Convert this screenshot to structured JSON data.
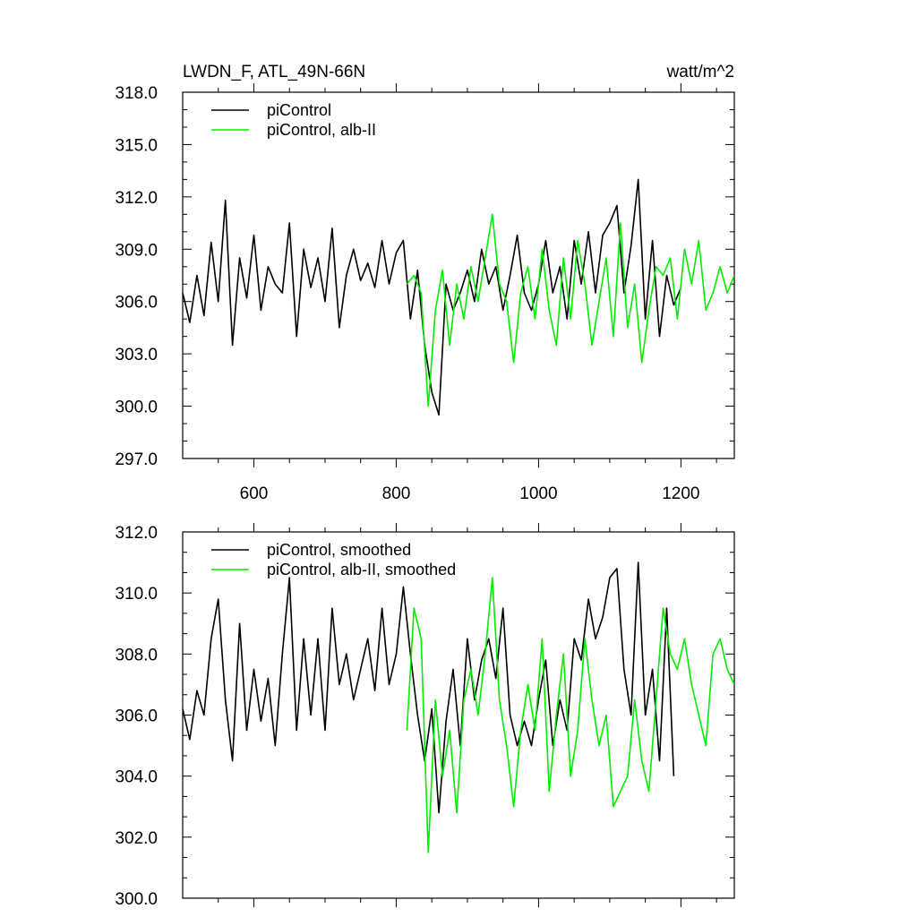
{
  "figure": {
    "title_left": "LWDN_F, ATL_49N-66N",
    "title_right": "watt/m^2"
  },
  "colors": {
    "series_control": "#000000",
    "series_albII": "#00ee00",
    "frame": "#000000",
    "background": "#ffffff"
  },
  "chart_data": [
    {
      "type": "line",
      "title": "LWDN_F, ATL_49N-66N",
      "unit_label": "watt/m^2",
      "xlabel": "",
      "ylabel": "",
      "xlim": [
        500,
        1275
      ],
      "ylim": [
        297.0,
        318.0
      ],
      "xticks": [
        600,
        800,
        1000,
        1200
      ],
      "xtick_labels": [
        "600",
        "800",
        "1000",
        "1200"
      ],
      "yticks": [
        297.0,
        300.0,
        303.0,
        306.0,
        309.0,
        312.0,
        315.0,
        318.0
      ],
      "ytick_labels": [
        "297.0",
        "300.0",
        "303.0",
        "306.0",
        "309.0",
        "312.0",
        "315.0",
        "318.0"
      ],
      "grid": false,
      "legend": "top-left",
      "series": [
        {
          "name": "piControl",
          "color": "#000000",
          "x": [
            500,
            510,
            520,
            530,
            540,
            550,
            560,
            570,
            580,
            590,
            600,
            610,
            620,
            630,
            640,
            650,
            660,
            670,
            680,
            690,
            700,
            710,
            720,
            730,
            740,
            750,
            760,
            770,
            780,
            790,
            800,
            810,
            820,
            830,
            840,
            850,
            860,
            870,
            880,
            890,
            900,
            910,
            920,
            930,
            940,
            950,
            960,
            970,
            980,
            990,
            1000,
            1010,
            1020,
            1030,
            1040,
            1050,
            1060,
            1070,
            1080,
            1090,
            1100,
            1110,
            1120,
            1130,
            1140,
            1150,
            1160,
            1170,
            1180,
            1190,
            1200
          ],
          "y": [
            306.5,
            304.8,
            307.5,
            305.2,
            309.4,
            306.0,
            311.8,
            303.5,
            308.5,
            306.2,
            309.8,
            305.5,
            308.0,
            307.0,
            306.5,
            310.5,
            304.0,
            309.0,
            306.8,
            308.5,
            306.0,
            310.2,
            304.5,
            307.5,
            309.0,
            307.2,
            308.2,
            306.8,
            309.5,
            307.0,
            308.8,
            309.5,
            305.0,
            307.8,
            303.5,
            300.8,
            299.5,
            307.0,
            305.5,
            306.5,
            307.8,
            306.0,
            309.0,
            307.0,
            308.0,
            305.5,
            307.5,
            309.8,
            306.5,
            305.5,
            307.0,
            309.5,
            306.5,
            308.0,
            305.0,
            309.5,
            307.0,
            310.0,
            306.5,
            309.8,
            310.5,
            311.5,
            306.5,
            309.2,
            313.0,
            305.0,
            309.5,
            304.0,
            307.5,
            305.8,
            306.8
          ]
        },
        {
          "name": "piControl, alb-II",
          "color": "#00ee00",
          "x": [
            815,
            825,
            835,
            845,
            855,
            865,
            875,
            885,
            895,
            905,
            915,
            925,
            935,
            945,
            955,
            965,
            975,
            985,
            995,
            1005,
            1015,
            1025,
            1035,
            1045,
            1055,
            1065,
            1075,
            1085,
            1095,
            1105,
            1115,
            1125,
            1135,
            1145,
            1155,
            1165,
            1175,
            1185,
            1195,
            1205,
            1215,
            1225,
            1235,
            1245,
            1255,
            1265,
            1275
          ],
          "y": [
            307.0,
            307.5,
            306.5,
            300.0,
            305.5,
            307.8,
            303.5,
            307.0,
            305.0,
            308.0,
            306.0,
            308.5,
            311.0,
            307.0,
            306.0,
            302.5,
            306.5,
            308.0,
            305.0,
            309.0,
            305.5,
            303.5,
            308.5,
            305.0,
            309.5,
            307.0,
            303.5,
            306.0,
            308.5,
            304.0,
            310.5,
            304.5,
            307.0,
            302.5,
            305.5,
            308.0,
            307.5,
            308.5,
            305.0,
            309.0,
            307.0,
            309.5,
            305.5,
            306.5,
            308.0,
            306.5,
            307.5
          ]
        }
      ]
    },
    {
      "type": "line",
      "xlabel": "",
      "ylabel": "",
      "xlim": [
        500,
        1275
      ],
      "ylim": [
        300.0,
        312.0
      ],
      "xticks": [
        600,
        800,
        1000,
        1200
      ],
      "xtick_labels": [],
      "yticks": [
        300.0,
        302.0,
        304.0,
        306.0,
        308.0,
        310.0,
        312.0
      ],
      "ytick_labels": [
        "300.0",
        "302.0",
        "304.0",
        "306.0",
        "308.0",
        "310.0",
        "312.0"
      ],
      "grid": false,
      "legend": "top-left",
      "series": [
        {
          "name": "piControl, smoothed",
          "color": "#000000",
          "x": [
            500,
            510,
            520,
            530,
            540,
            550,
            560,
            570,
            580,
            590,
            600,
            610,
            620,
            630,
            640,
            650,
            660,
            670,
            680,
            690,
            700,
            710,
            720,
            730,
            740,
            750,
            760,
            770,
            780,
            790,
            800,
            810,
            820,
            830,
            840,
            850,
            860,
            870,
            880,
            890,
            900,
            910,
            920,
            930,
            940,
            950,
            960,
            970,
            980,
            990,
            1000,
            1010,
            1020,
            1030,
            1040,
            1050,
            1060,
            1070,
            1080,
            1090,
            1100,
            1110,
            1120,
            1130,
            1140,
            1150,
            1160,
            1170,
            1180,
            1190
          ],
          "y": [
            306.2,
            305.2,
            306.8,
            306.0,
            308.5,
            309.8,
            306.5,
            304.5,
            309.0,
            305.5,
            307.5,
            305.8,
            307.2,
            305.0,
            308.0,
            310.5,
            305.5,
            308.5,
            306.0,
            308.5,
            305.5,
            309.5,
            307.0,
            308.0,
            306.5,
            307.5,
            308.5,
            306.8,
            309.5,
            307.0,
            308.0,
            310.2,
            308.0,
            306.0,
            304.5,
            306.2,
            302.8,
            305.8,
            307.5,
            305.0,
            308.5,
            306.5,
            307.8,
            308.5,
            307.2,
            309.5,
            306.0,
            305.0,
            305.8,
            305.0,
            306.5,
            307.8,
            305.0,
            306.5,
            305.5,
            308.5,
            307.8,
            309.8,
            308.5,
            309.2,
            310.5,
            310.8,
            307.5,
            306.0,
            311.0,
            306.0,
            307.5,
            304.5,
            309.5,
            304.0
          ]
        },
        {
          "name": "piControl, alb-II, smoothed",
          "color": "#00ee00",
          "x": [
            815,
            825,
            835,
            845,
            855,
            865,
            875,
            885,
            895,
            905,
            915,
            925,
            935,
            945,
            955,
            965,
            975,
            985,
            995,
            1005,
            1015,
            1025,
            1035,
            1045,
            1055,
            1065,
            1075,
            1085,
            1095,
            1105,
            1115,
            1125,
            1135,
            1145,
            1155,
            1165,
            1175,
            1185,
            1195,
            1205,
            1215,
            1225,
            1235,
            1245,
            1255,
            1265,
            1275
          ],
          "y": [
            305.5,
            309.5,
            308.5,
            301.5,
            306.5,
            304.0,
            305.5,
            302.8,
            306.5,
            307.5,
            306.0,
            308.0,
            310.5,
            306.5,
            305.0,
            303.0,
            305.5,
            307.0,
            305.5,
            308.5,
            303.5,
            306.0,
            308.0,
            304.0,
            305.5,
            308.5,
            306.5,
            305.0,
            306.0,
            303.0,
            303.5,
            304.0,
            306.5,
            304.5,
            303.5,
            306.5,
            309.5,
            308.0,
            307.5,
            308.5,
            307.0,
            306.0,
            305.0,
            308.0,
            308.5,
            307.5,
            307.0
          ]
        }
      ]
    }
  ]
}
